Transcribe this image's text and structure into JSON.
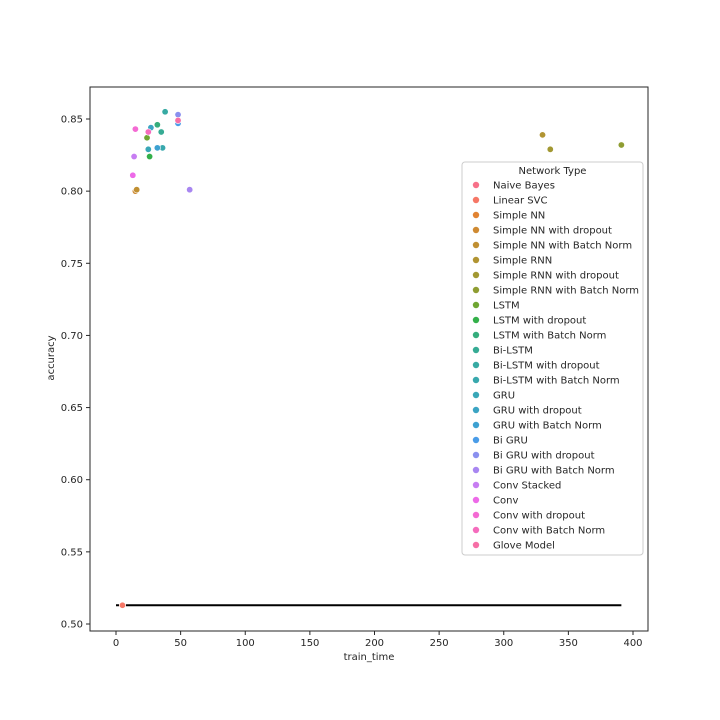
{
  "chart_data": {
    "type": "scatter",
    "title": "",
    "xlabel": "train_time",
    "ylabel": "accuracy",
    "xlim": [
      -20,
      410
    ],
    "ylim": [
      0.495,
      0.874
    ],
    "x_ticks": [
      0,
      50,
      100,
      150,
      200,
      250,
      300,
      350,
      400
    ],
    "y_ticks": [
      0.5,
      0.55,
      0.6,
      0.65,
      0.7,
      0.75,
      0.8,
      0.85
    ],
    "x_tick_labels": [
      "0",
      "50",
      "100",
      "150",
      "200",
      "250",
      "300",
      "350",
      "400"
    ],
    "y_tick_labels": [
      "0.50",
      "0.55",
      "0.60",
      "0.65",
      "0.70",
      "0.75",
      "0.80",
      "0.85"
    ],
    "grid": false,
    "legend": {
      "title": "Network Type",
      "position": "center right"
    },
    "hline": {
      "y": 0.513,
      "xmin": 0,
      "xmax": 391,
      "color": "#000000"
    },
    "series": [
      {
        "name": "Naive Bayes",
        "color": "#f77189",
        "x": [
          5
        ],
        "y": [
          0.513
        ]
      },
      {
        "name": "Linear SVC",
        "color": "#f67766",
        "x": [
          5
        ],
        "y": [
          0.513
        ]
      },
      {
        "name": "Simple NN",
        "color": "#e18332",
        "x": [
          15
        ],
        "y": [
          0.8
        ]
      },
      {
        "name": "Simple NN with dropout",
        "color": "#cf8a32",
        "x": [
          15
        ],
        "y": [
          0.8
        ]
      },
      {
        "name": "Simple NN with Batch Norm",
        "color": "#c08f32",
        "x": [
          16
        ],
        "y": [
          0.801
        ]
      },
      {
        "name": "Simple RNN",
        "color": "#b19432",
        "x": [
          330
        ],
        "y": [
          0.839
        ]
      },
      {
        "name": "Simple RNN with dropout",
        "color": "#a29832",
        "x": [
          336
        ],
        "y": [
          0.829
        ]
      },
      {
        "name": "Simple RNN with Batch Norm",
        "color": "#8f9d32",
        "x": [
          391
        ],
        "y": [
          0.832
        ]
      },
      {
        "name": "LSTM",
        "color": "#6fa632",
        "x": [
          24
        ],
        "y": [
          0.837
        ]
      },
      {
        "name": "LSTM with dropout",
        "color": "#33b04a",
        "x": [
          26
        ],
        "y": [
          0.824
        ]
      },
      {
        "name": "LSTM with Batch Norm",
        "color": "#35ad7c",
        "x": [
          32
        ],
        "y": [
          0.846
        ]
      },
      {
        "name": "Bi-LSTM",
        "color": "#36ab94",
        "x": [
          35
        ],
        "y": [
          0.841
        ]
      },
      {
        "name": "Bi-LSTM with dropout",
        "color": "#37aaa3",
        "x": [
          38
        ],
        "y": [
          0.855
        ]
      },
      {
        "name": "Bi-LSTM with Batch Norm",
        "color": "#38a8ad",
        "x": [
          36
        ],
        "y": [
          0.83
        ]
      },
      {
        "name": "GRU",
        "color": "#39a7b7",
        "x": [
          25
        ],
        "y": [
          0.829
        ]
      },
      {
        "name": "GRU with dropout",
        "color": "#3ba4c3",
        "x": [
          27
        ],
        "y": [
          0.844
        ]
      },
      {
        "name": "GRU with Batch Norm",
        "color": "#3da1d1",
        "x": [
          32
        ],
        "y": [
          0.83
        ]
      },
      {
        "name": "Bi GRU",
        "color": "#4a9ce8",
        "x": [
          48
        ],
        "y": [
          0.847
        ]
      },
      {
        "name": "Bi GRU with dropout",
        "color": "#8a90ef",
        "x": [
          48
        ],
        "y": [
          0.853
        ]
      },
      {
        "name": "Bi GRU with Batch Norm",
        "color": "#a886f1",
        "x": [
          57
        ],
        "y": [
          0.801
        ]
      },
      {
        "name": "Conv Stacked",
        "color": "#c77df2",
        "x": [
          14
        ],
        "y": [
          0.824
        ]
      },
      {
        "name": "Conv",
        "color": "#ed6ae8",
        "x": [
          13
        ],
        "y": [
          0.811
        ]
      },
      {
        "name": "Conv with dropout",
        "color": "#f46ad3",
        "x": [
          15
        ],
        "y": [
          0.843
        ]
      },
      {
        "name": "Conv with Batch Norm",
        "color": "#f56cbd",
        "x": [
          25
        ],
        "y": [
          0.841
        ]
      },
      {
        "name": "Glove Model",
        "color": "#f66fa6",
        "x": [
          48
        ],
        "y": [
          0.849
        ]
      }
    ]
  }
}
